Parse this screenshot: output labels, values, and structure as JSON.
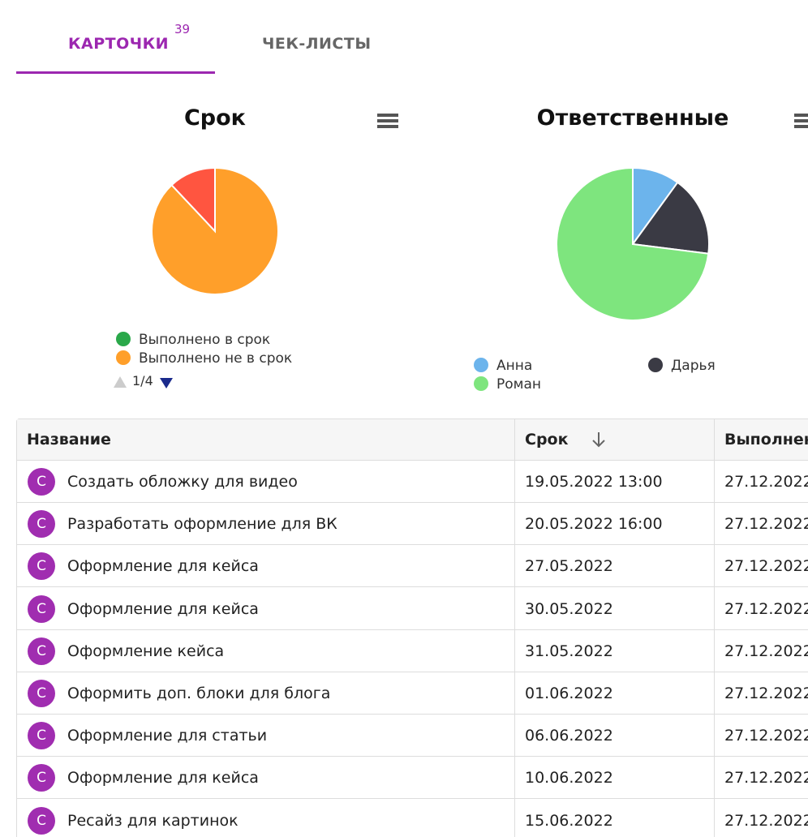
{
  "tabs": [
    {
      "label": "КАРТОЧКИ",
      "badge": 39
    },
    {
      "label": "ЧЕК-ЛИСТЫ"
    }
  ],
  "chart_data": [
    {
      "type": "pie",
      "title": "Срок",
      "categories": [
        "Выполнено в срок",
        "Выполнено не в срок",
        null
      ],
      "values": [
        0,
        88,
        12
      ],
      "colors": [
        "#2aa84a",
        "#ff9f2a",
        "#ff5540"
      ],
      "legend_page": "1/4"
    },
    {
      "type": "pie",
      "title": "Ответственные",
      "categories": [
        "Анна",
        "Дарья",
        "Роман"
      ],
      "values": [
        10,
        17,
        73
      ],
      "colors": [
        "#6cb4ec",
        "#3a3a44",
        "#7ee57e"
      ]
    }
  ],
  "table": {
    "columns": [
      "Название",
      "Срок",
      "Выполнено"
    ],
    "rows": [
      [
        "С",
        "Создать обложку для видео",
        "19.05.2022 13:00",
        "27.12.2022"
      ],
      [
        "С",
        "Разработать оформление для ВК",
        "20.05.2022 16:00",
        "27.12.2022"
      ],
      [
        "С",
        "Оформление для кейса",
        "27.05.2022",
        "27.12.2022"
      ],
      [
        "С",
        "Оформление для кейса",
        "30.05.2022",
        "27.12.2022"
      ],
      [
        "С",
        "Оформление кейса",
        "31.05.2022",
        "27.12.2022"
      ],
      [
        "С",
        "Оформить доп. блоки для блога",
        "01.06.2022",
        "27.12.2022"
      ],
      [
        "С",
        "Оформление для статьи",
        "06.06.2022",
        "27.12.2022"
      ],
      [
        "С",
        "Оформление для кейса",
        "10.06.2022",
        "27.12.2022"
      ],
      [
        "С",
        "Ресайз для картинок",
        "15.06.2022",
        "27.12.2022"
      ]
    ]
  }
}
